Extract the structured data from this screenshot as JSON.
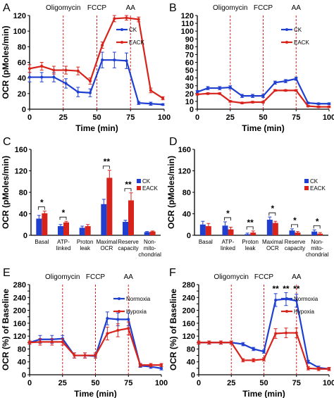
{
  "colors": {
    "blue": "#1f3fd1",
    "red": "#d8231b",
    "vline": "#e02020",
    "axis": "#000000"
  },
  "chart_data": [
    {
      "panel": "A",
      "type": "line",
      "xlabel": "Time (min)",
      "ylabel": "OCR (pMoles/min)",
      "xticks": [
        0,
        25,
        50,
        75,
        100
      ],
      "yticks": [
        0,
        20,
        40,
        60,
        80,
        100,
        120
      ],
      "xlim": [
        0,
        100
      ],
      "ylim": [
        0,
        120
      ],
      "markers": [
        {
          "x": 25,
          "label": "Oligomycin"
        },
        {
          "x": 50,
          "label": "FCCP"
        },
        {
          "x": 75,
          "label": "AA"
        }
      ],
      "legend_position": "top-right",
      "series": [
        {
          "name": "CK",
          "color": "blue",
          "x": [
            0,
            9,
            18,
            27,
            36,
            45,
            54,
            63,
            72,
            81,
            90,
            99
          ],
          "y": [
            41,
            41,
            41,
            33,
            22,
            21,
            63,
            63,
            62,
            8,
            7,
            6
          ],
          "err": [
            6,
            6,
            6,
            6,
            6,
            5,
            10,
            10,
            10,
            2,
            2,
            1
          ]
        },
        {
          "name": "EACK",
          "color": "red",
          "x": [
            0,
            9,
            18,
            27,
            36,
            45,
            54,
            63,
            72,
            81,
            90,
            99
          ],
          "y": [
            52,
            55,
            50,
            50,
            49,
            36,
            82,
            116,
            117,
            115,
            24,
            14
          ],
          "err": [
            5,
            5,
            5,
            5,
            5,
            4,
            4,
            4,
            3,
            3,
            3,
            2
          ]
        }
      ]
    },
    {
      "panel": "B",
      "type": "line",
      "xlabel": "Time (min)",
      "ylabel": "",
      "xticks": [
        0,
        25,
        50,
        75,
        100
      ],
      "yticks": [
        0,
        10,
        20,
        30,
        40,
        50,
        60,
        70,
        80,
        90,
        100,
        110,
        120
      ],
      "xlim": [
        0,
        100
      ],
      "ylim": [
        0,
        120
      ],
      "markers": [
        {
          "x": 25,
          "label": "Oligomycin"
        },
        {
          "x": 50,
          "label": "FCCP"
        },
        {
          "x": 75,
          "label": "AA"
        }
      ],
      "legend_position": "top-right",
      "series": [
        {
          "name": "CK",
          "color": "blue",
          "x": [
            0,
            8,
            17,
            25,
            34,
            42,
            50,
            59,
            67,
            75,
            84,
            92,
            100
          ],
          "y": [
            22,
            27,
            27,
            28,
            17,
            17,
            17,
            34,
            36,
            39,
            8,
            7,
            7
          ],
          "err": [
            2,
            2,
            2,
            2,
            2,
            2,
            2,
            2,
            2,
            2,
            1,
            1,
            1
          ]
        },
        {
          "name": "EACK",
          "color": "red",
          "x": [
            0,
            8,
            17,
            25,
            34,
            42,
            50,
            59,
            67,
            75,
            84,
            92,
            100
          ],
          "y": [
            19,
            20,
            20,
            10,
            8,
            9,
            9,
            24,
            24,
            24,
            4,
            3,
            3
          ],
          "err": [
            1,
            1,
            1,
            1,
            1,
            1,
            1,
            1,
            1,
            1,
            1,
            1,
            1
          ]
        }
      ]
    },
    {
      "panel": "C",
      "type": "bar",
      "ylabel": "OCR (pMoles/min)",
      "categories": [
        "Basal",
        "ATP-\nlinked",
        "Proton\nleak",
        "Maximal\nOCR",
        "Reserve\ncapacity",
        "Non-\nmito-\nchondrial"
      ],
      "yticks": [
        0,
        40,
        80,
        120,
        160
      ],
      "ylim": [
        0,
        160
      ],
      "legend_position": "top-right",
      "significance": [
        "*",
        "*",
        "",
        "**",
        "**",
        ""
      ],
      "series": [
        {
          "name": "CK",
          "color": "blue",
          "values": [
            31,
            17,
            14,
            58,
            25,
            6
          ],
          "err": [
            6,
            3,
            3,
            9,
            3,
            1
          ]
        },
        {
          "name": "EACK",
          "color": "red",
          "values": [
            41,
            24,
            17,
            107,
            65,
            7
          ],
          "err": [
            4,
            2,
            3,
            14,
            14,
            1
          ]
        }
      ]
    },
    {
      "panel": "D",
      "type": "bar",
      "ylabel": "OCR (pMoles/min)",
      "categories": [
        "Basal",
        "ATP-\nlinked",
        "Proton\nleak",
        "Maximal\nOCR",
        "Reserve\ncapacity",
        "Non-\nmito-\nchondrial"
      ],
      "yticks": [
        0,
        40,
        80,
        120,
        160
      ],
      "ylim": [
        0,
        160
      ],
      "legend_position": "top-right",
      "significance": [
        "",
        "*",
        "**",
        "*",
        "*",
        "*"
      ],
      "series": [
        {
          "name": "CK",
          "color": "blue",
          "values": [
            20,
            18,
            2,
            29,
            9,
            7
          ],
          "err": [
            6,
            7,
            2,
            5,
            3,
            3
          ]
        },
        {
          "name": "EACK",
          "color": "red",
          "values": [
            17,
            11,
            5,
            23,
            5,
            3
          ],
          "err": [
            5,
            4,
            3,
            3,
            2,
            2
          ]
        }
      ]
    },
    {
      "panel": "E",
      "type": "line",
      "xlabel": "Time (min)",
      "ylabel": "OCR (%) of Baseline",
      "xticks": [
        0,
        25,
        50,
        75,
        100
      ],
      "yticks": [
        0,
        20,
        40,
        60,
        80,
        100,
        120,
        140,
        160,
        180,
        200,
        220,
        240,
        260,
        280
      ],
      "xlim": [
        0,
        100
      ],
      "ylim": [
        0,
        280
      ],
      "markers": [
        {
          "x": 25,
          "label": "Oligomycin"
        },
        {
          "x": 50,
          "label": "FCCP"
        },
        {
          "x": 75,
          "label": "AA"
        }
      ],
      "legend_position": "top-right",
      "series": [
        {
          "name": "Normoxia",
          "color": "blue",
          "x": [
            0,
            8,
            17,
            25,
            34,
            42,
            50,
            59,
            67,
            75,
            84,
            92,
            100
          ],
          "y": [
            100,
            110,
            110,
            112,
            60,
            60,
            58,
            175,
            172,
            172,
            28,
            25,
            20
          ],
          "err": [
            5,
            12,
            12,
            10,
            8,
            8,
            6,
            20,
            20,
            20,
            5,
            5,
            5
          ]
        },
        {
          "name": "Hypoxia",
          "color": "red",
          "x": [
            0,
            8,
            17,
            25,
            34,
            42,
            50,
            59,
            67,
            75,
            84,
            92,
            100
          ],
          "y": [
            100,
            102,
            102,
            102,
            60,
            60,
            60,
            128,
            138,
            144,
            30,
            30,
            30
          ],
          "err": [
            5,
            10,
            10,
            10,
            8,
            8,
            8,
            20,
            20,
            20,
            5,
            5,
            5
          ]
        }
      ]
    },
    {
      "panel": "F",
      "type": "line",
      "xlabel": "Time (min)",
      "ylabel": "OCR (%) of Baseline",
      "xticks": [
        0,
        25,
        50,
        75,
        100
      ],
      "yticks": [
        0,
        20,
        40,
        60,
        80,
        100,
        120,
        140,
        160,
        180,
        200,
        220,
        240,
        260,
        280
      ],
      "xlim": [
        0,
        100
      ],
      "ylim": [
        0,
        280
      ],
      "markers": [
        {
          "x": 25,
          "label": "Oligomycin"
        },
        {
          "x": 50,
          "label": "FCCP"
        },
        {
          "x": 75,
          "label": "AA"
        }
      ],
      "legend_position": "top-right",
      "significance_points": [
        {
          "x": 59,
          "label": "**"
        },
        {
          "x": 67,
          "label": "**"
        },
        {
          "x": 75,
          "label": "**"
        }
      ],
      "series": [
        {
          "name": "Normoxia",
          "color": "blue",
          "x": [
            0,
            8,
            17,
            25,
            34,
            42,
            50,
            59,
            67,
            75,
            84,
            92,
            100
          ],
          "y": [
            100,
            100,
            100,
            100,
            95,
            80,
            72,
            232,
            235,
            230,
            40,
            22,
            18
          ],
          "err": [
            5,
            5,
            5,
            5,
            5,
            5,
            5,
            20,
            20,
            20,
            5,
            5,
            5
          ]
        },
        {
          "name": "Hypoxia",
          "color": "red",
          "x": [
            0,
            8,
            17,
            25,
            34,
            42,
            50,
            59,
            67,
            75,
            84,
            92,
            100
          ],
          "y": [
            100,
            100,
            100,
            100,
            45,
            45,
            48,
            128,
            130,
            130,
            20,
            18,
            18
          ],
          "err": [
            5,
            5,
            5,
            5,
            5,
            5,
            5,
            15,
            15,
            15,
            5,
            5,
            5
          ]
        }
      ]
    }
  ]
}
